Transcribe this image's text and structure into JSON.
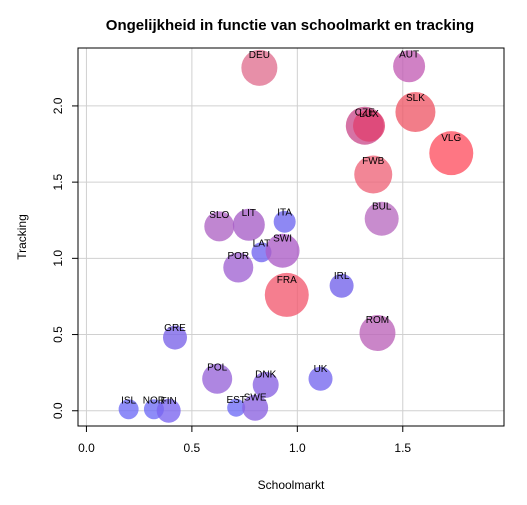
{
  "chart_data": {
    "type": "scatter",
    "title": "Ongelijkheid in functie van schoolmarkt en tracking",
    "xlabel": "Schoolmarkt",
    "ylabel": "Tracking",
    "xlim": [
      -0.04,
      1.98
    ],
    "ylim": [
      -0.1,
      2.38
    ],
    "xticks": [
      0.0,
      0.5,
      1.0,
      1.5
    ],
    "xtick_labels": [
      "0.0",
      "0.5",
      "1.0",
      "1.5"
    ],
    "yticks": [
      0.0,
      0.5,
      1.0,
      1.5,
      2.0
    ],
    "ytick_labels": [
      "0.0",
      "0.5",
      "1.0",
      "1.5",
      "2.0"
    ],
    "grid": true,
    "points": [
      {
        "label": "DEU",
        "x": 0.82,
        "y": 2.25,
        "size": 18,
        "color": "#E0708F"
      },
      {
        "label": "AUT",
        "x": 1.53,
        "y": 2.26,
        "size": 16,
        "color": "#C35EB5"
      },
      {
        "label": "CZE",
        "x": 1.32,
        "y": 1.87,
        "size": 19,
        "color": "#CB4C8C"
      },
      {
        "label": "LUX",
        "x": 1.34,
        "y": 1.87,
        "size": 16,
        "color": "#E04070"
      },
      {
        "label": "SLK",
        "x": 1.56,
        "y": 1.96,
        "size": 20,
        "color": "#EE5868"
      },
      {
        "label": "VLG",
        "x": 1.73,
        "y": 1.69,
        "size": 22,
        "color": "#FE5060"
      },
      {
        "label": "FWB",
        "x": 1.36,
        "y": 1.55,
        "size": 19,
        "color": "#EE6478"
      },
      {
        "label": "BUL",
        "x": 1.4,
        "y": 1.26,
        "size": 17,
        "color": "#B86CC0"
      },
      {
        "label": "SLO",
        "x": 0.63,
        "y": 1.21,
        "size": 15,
        "color": "#AE64C4"
      },
      {
        "label": "LIT",
        "x": 0.77,
        "y": 1.22,
        "size": 16,
        "color": "#A65EC6"
      },
      {
        "label": "ITA",
        "x": 0.94,
        "y": 1.24,
        "size": 11,
        "color": "#6E66F0"
      },
      {
        "label": "LAT",
        "x": 0.83,
        "y": 1.04,
        "size": 10,
        "color": "#7064F0"
      },
      {
        "label": "SWI",
        "x": 0.93,
        "y": 1.05,
        "size": 17,
        "color": "#AC5CC6"
      },
      {
        "label": "POR",
        "x": 0.72,
        "y": 0.94,
        "size": 15,
        "color": "#A063D2"
      },
      {
        "label": "IRL",
        "x": 1.21,
        "y": 0.82,
        "size": 12,
        "color": "#7262EA"
      },
      {
        "label": "FRA",
        "x": 0.95,
        "y": 0.76,
        "size": 22,
        "color": "#F25A70"
      },
      {
        "label": "ROM",
        "x": 1.38,
        "y": 0.51,
        "size": 18,
        "color": "#BB63B8"
      },
      {
        "label": "GRE",
        "x": 0.42,
        "y": 0.48,
        "size": 12,
        "color": "#7A63E8"
      },
      {
        "label": "POL",
        "x": 0.62,
        "y": 0.21,
        "size": 15,
        "color": "#9764D8"
      },
      {
        "label": "UK",
        "x": 1.11,
        "y": 0.21,
        "size": 12,
        "color": "#7566EE"
      },
      {
        "label": "DNK",
        "x": 0.85,
        "y": 0.17,
        "size": 13,
        "color": "#8862E2"
      },
      {
        "label": "EST",
        "x": 0.71,
        "y": 0.02,
        "size": 9,
        "color": "#6E6CF6"
      },
      {
        "label": "SWE",
        "x": 0.8,
        "y": 0.02,
        "size": 13,
        "color": "#8A62E0"
      },
      {
        "label": "ISL",
        "x": 0.2,
        "y": 0.01,
        "size": 10,
        "color": "#6E6CF6"
      },
      {
        "label": "NOR",
        "x": 0.32,
        "y": 0.01,
        "size": 10,
        "color": "#6E6CF6"
      },
      {
        "label": "FIN",
        "x": 0.39,
        "y": 0.0,
        "size": 12,
        "color": "#7A64F0"
      }
    ]
  }
}
